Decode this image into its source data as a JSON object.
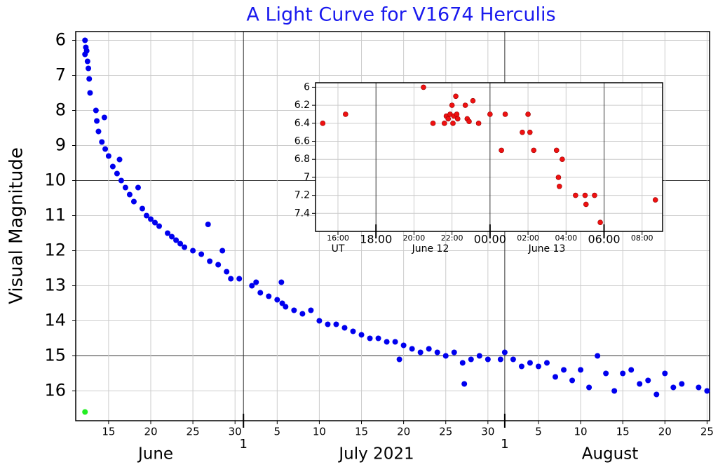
{
  "chart_data": [
    {
      "type": "scatter",
      "title": "A Light Curve for V1674 Herculis",
      "y_label": "Visual Magnitude",
      "xlim": [
        11.1,
        86.3
      ],
      "ylim": [
        5.75,
        16.85
      ],
      "y_inverted": true,
      "grid": true,
      "yticks": [
        6,
        7,
        8,
        9,
        10,
        11,
        12,
        13,
        14,
        15,
        16
      ],
      "major_ygrid": [
        10,
        15
      ],
      "xticks": [
        15,
        20,
        25,
        30,
        {
          "value": 35,
          "label": "5"
        },
        {
          "value": 40,
          "label": "10"
        },
        {
          "value": 45,
          "label": "15"
        },
        {
          "value": 50,
          "label": "20"
        },
        {
          "value": 55,
          "label": "25"
        },
        {
          "value": 60,
          "label": "30"
        },
        {
          "value": 66,
          "label": "5"
        },
        {
          "value": 71,
          "label": "10"
        },
        {
          "value": 76,
          "label": "15"
        },
        {
          "value": 81,
          "label": "20"
        },
        {
          "value": 86,
          "label": "25"
        }
      ],
      "month_ticks": [
        {
          "value": 31,
          "label": "1"
        },
        {
          "value": 62,
          "label": "1"
        }
      ],
      "month_labels": [
        "June",
        "July 2021",
        "August"
      ],
      "series": [
        {
          "color": "#0000ee",
          "x": [
            12.2,
            12.3,
            12.2,
            12.4,
            12.5,
            12.6,
            12.7,
            12.8,
            13.5,
            13.6,
            13.8,
            14.2,
            14.5,
            14.6,
            15.0,
            15.5,
            16.0,
            16.3,
            16.5,
            17.0,
            17.5,
            18.0,
            18.5,
            19.0,
            19.5,
            20.0,
            20.5,
            21.0,
            22.0,
            22.5,
            23.0,
            23.5,
            24.0,
            25.0,
            26.0,
            26.8,
            27.0,
            28.0,
            28.5,
            29.0,
            29.5,
            30.5,
            32.0,
            32.5,
            33.0,
            34.0,
            35.0,
            35.5,
            35.6,
            36.0,
            37.0,
            38.0,
            39.0,
            40.0,
            41.0,
            42.0,
            43.0,
            44.0,
            45.0,
            46.0,
            47.0,
            48.0,
            49.0,
            49.5,
            50.0,
            51.0,
            52.0,
            53.0,
            54.0,
            55.0,
            56.0,
            57.0,
            57.2,
            58.0,
            59.0,
            60.0,
            61.5,
            62.0,
            63.0,
            64.0,
            65.0,
            66.0,
            67.0,
            68.0,
            69.0,
            70.0,
            71.0,
            72.0,
            73.0,
            74.0,
            75.0,
            76.0,
            77.0,
            78.0,
            79.0,
            80.0,
            81.0,
            82.0,
            83.0,
            85.0,
            86.0
          ],
          "values": [
            6.0,
            6.2,
            6.4,
            6.3,
            6.6,
            6.8,
            7.1,
            7.5,
            8.0,
            8.3,
            8.6,
            8.9,
            8.2,
            9.1,
            9.3,
            9.6,
            9.8,
            9.4,
            10.0,
            10.2,
            10.4,
            10.6,
            10.2,
            10.8,
            11.0,
            11.1,
            11.2,
            11.3,
            11.5,
            11.6,
            11.7,
            11.8,
            11.9,
            12.0,
            12.1,
            11.25,
            12.3,
            12.4,
            12.0,
            12.6,
            12.8,
            12.8,
            13.0,
            12.9,
            13.2,
            13.3,
            13.4,
            12.9,
            13.5,
            13.6,
            13.7,
            13.8,
            13.7,
            14.0,
            14.1,
            14.1,
            14.2,
            14.3,
            14.4,
            14.5,
            14.5,
            14.6,
            14.6,
            15.1,
            14.7,
            14.8,
            14.9,
            14.8,
            14.9,
            15.0,
            14.9,
            15.2,
            15.8,
            15.1,
            15.0,
            15.1,
            15.1,
            14.9,
            15.1,
            15.3,
            15.2,
            15.3,
            15.2,
            15.6,
            15.4,
            15.7,
            15.4,
            15.9,
            15.0,
            15.5,
            16.0,
            15.5,
            15.4,
            15.8,
            15.7,
            16.1,
            15.5,
            15.9,
            15.8,
            15.9,
            16.0
          ]
        },
        {
          "color": "#22ee22",
          "x": [
            12.2
          ],
          "values": [
            16.6
          ]
        }
      ]
    },
    {
      "type": "scatter",
      "xlim": [
        14.82,
        33.08
      ],
      "ylim": [
        5.95,
        7.6
      ],
      "y_inverted": true,
      "grid": true,
      "yticks": [
        6,
        6.2,
        6.4,
        6.6,
        6.8,
        7,
        7.2,
        7.4
      ],
      "xticks": [
        {
          "value": 16,
          "label": "16:00"
        },
        {
          "value": 20,
          "label": "20:00"
        },
        {
          "value": 22,
          "label": "22:00"
        },
        {
          "value": 26,
          "label": "02:00"
        },
        {
          "value": 28,
          "label": "04:00"
        },
        {
          "value": 32,
          "label": "08:00"
        }
      ],
      "major_xticks": [
        {
          "value": 18,
          "label": "18:00"
        },
        {
          "value": 24,
          "label": "00:00"
        },
        {
          "value": 30,
          "label": "06:00"
        }
      ],
      "x_notes": [
        "UT",
        "June 12",
        "June 13"
      ],
      "series": [
        {
          "color": "#ee1111",
          "x": [
            15.2,
            16.4,
            20.5,
            21.0,
            21.6,
            21.7,
            21.8,
            21.9,
            22.0,
            22.05,
            22.1,
            22.2,
            22.25,
            22.3,
            22.7,
            22.8,
            22.9,
            23.1,
            23.4,
            24.0,
            24.6,
            24.8,
            25.7,
            26.0,
            26.1,
            26.3,
            27.5,
            27.6,
            27.65,
            27.8,
            28.5,
            29.0,
            29.05,
            29.5,
            29.8,
            32.7
          ],
          "values": [
            6.4,
            6.3,
            6.0,
            6.4,
            6.4,
            6.32,
            6.35,
            6.3,
            6.2,
            6.4,
            6.32,
            6.1,
            6.3,
            6.35,
            6.2,
            6.35,
            6.38,
            6.15,
            6.4,
            6.3,
            6.7,
            6.3,
            6.5,
            6.3,
            6.5,
            6.7,
            6.7,
            7.0,
            7.1,
            6.8,
            7.2,
            7.2,
            7.3,
            7.2,
            7.5,
            7.25
          ]
        }
      ]
    }
  ]
}
